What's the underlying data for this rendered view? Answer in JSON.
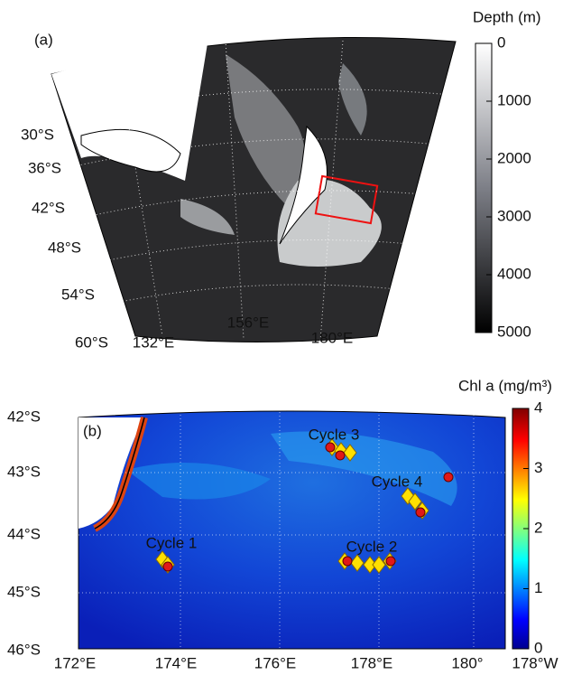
{
  "panel_a": {
    "label": "(a)",
    "colorbar": {
      "title": "Depth (m)",
      "lim": [
        0,
        5000
      ],
      "ticks": [
        0,
        1000,
        2000,
        3000,
        4000,
        5000
      ]
    },
    "lat_labels": [
      "30°S",
      "36°S",
      "42°S",
      "48°S",
      "54°S",
      "60°S"
    ],
    "lon_labels": [
      "132°E",
      "156°E",
      "180°E"
    ]
  },
  "panel_b": {
    "label": "(b)",
    "colorbar": {
      "title": "Chl a (mg/m³)",
      "lim": [
        0,
        4
      ],
      "ticks": [
        0,
        1,
        2,
        3,
        4
      ]
    },
    "lat_labels": [
      "42°S",
      "43°S",
      "44°S",
      "45°S",
      "46°S"
    ],
    "lon_labels": [
      "172°E",
      "174°E",
      "176°E",
      "178°E",
      "180°",
      "178°W"
    ],
    "annotations": [
      "Cycle 1",
      "Cycle 2",
      "Cycle 3",
      "Cycle 4"
    ]
  }
}
